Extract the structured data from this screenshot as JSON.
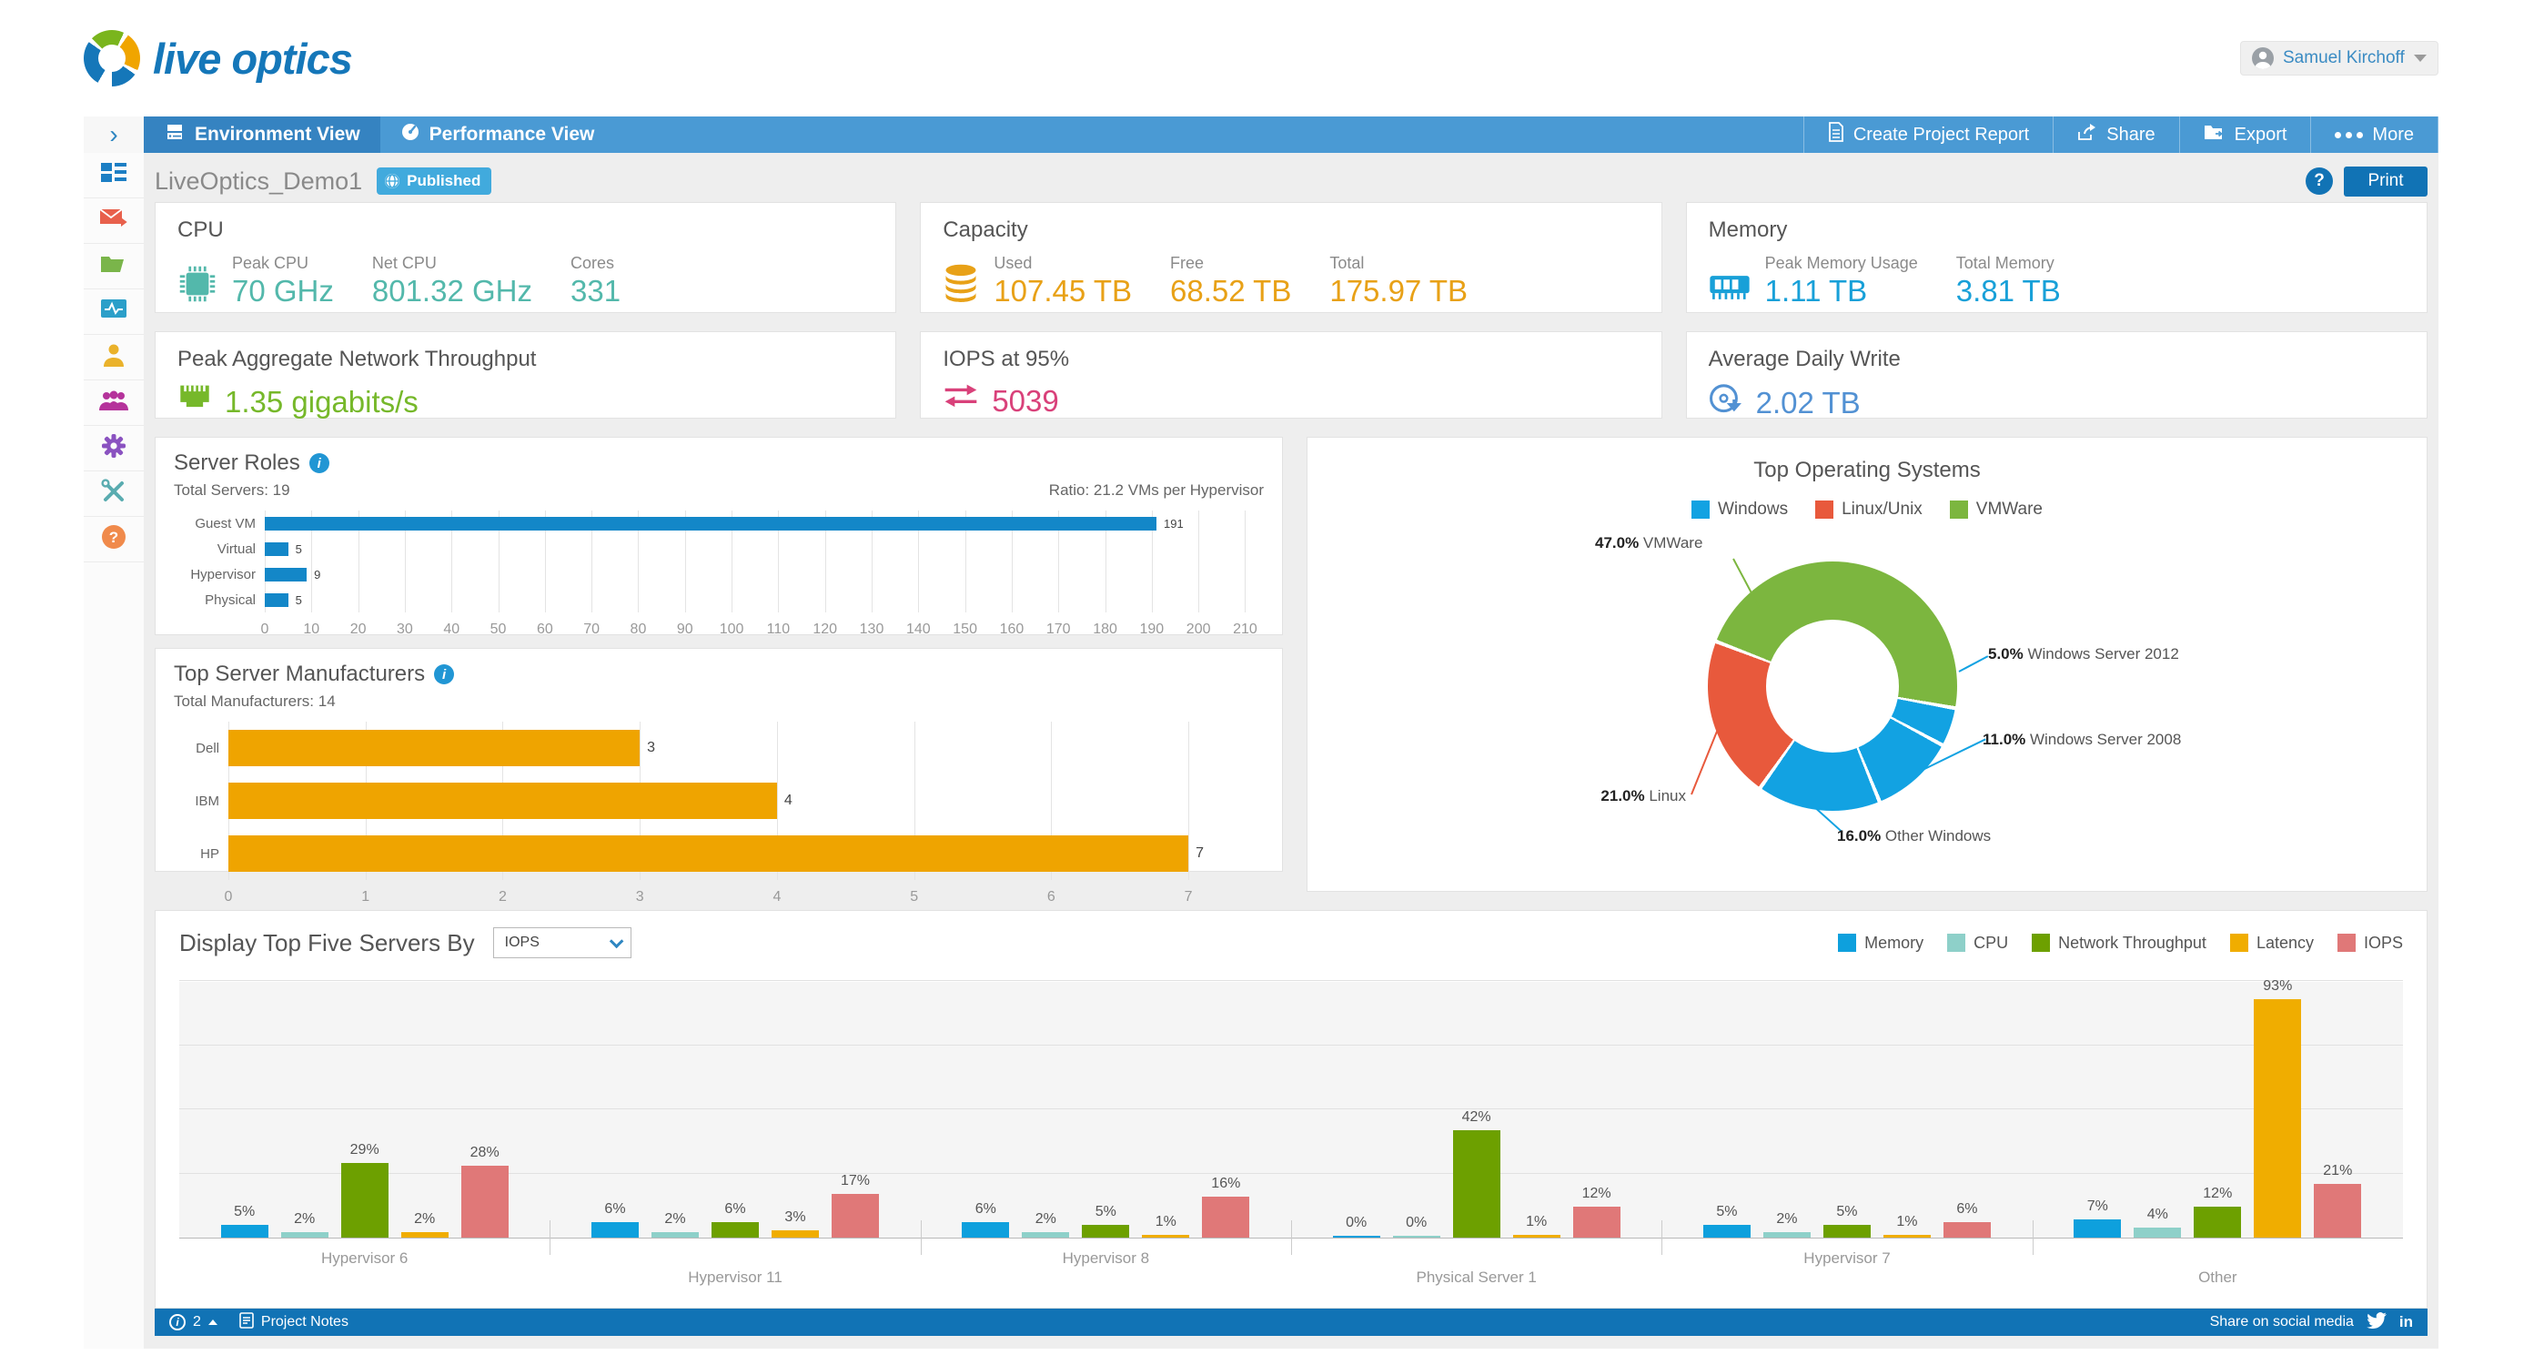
{
  "colors": {
    "brand_blue": "#1577b9",
    "navbar_blue": "#4a9ad4",
    "active_tab_blue": "#3583c1",
    "footer_blue": "#1173b5",
    "badge_blue": "#41aadd"
  },
  "icons": {
    "rail_chevron": "›",
    "info_glyph": "i",
    "help_glyph": "?",
    "linkedin_glyph": "in"
  },
  "header": {
    "brand": "live optics",
    "user": "Samuel Kirchoff"
  },
  "nav": {
    "tabs": [
      {
        "label": "Environment View"
      },
      {
        "label": "Performance View"
      }
    ],
    "actions": [
      {
        "label": "Create Project Report"
      },
      {
        "label": "Share"
      },
      {
        "label": "Export"
      },
      {
        "label": "More"
      }
    ]
  },
  "sidebar": {
    "items": [
      {
        "icon": "dashboard-icon"
      },
      {
        "icon": "mail-forward-icon"
      },
      {
        "icon": "folder-icon"
      },
      {
        "icon": "activity-monitor-icon"
      },
      {
        "icon": "user-icon"
      },
      {
        "icon": "user-group-icon"
      },
      {
        "icon": "settings-gear-icon"
      },
      {
        "icon": "tools-icon"
      },
      {
        "icon": "help-icon"
      }
    ]
  },
  "page": {
    "title": "LiveOptics_Demo1",
    "badge": "Published",
    "print_label": "Print"
  },
  "cards": {
    "cpu": {
      "title": "CPU",
      "color": "#53b8ab",
      "icon": "cpu-chip-icon",
      "metrics": [
        {
          "label": "Peak CPU",
          "value": "70 GHz"
        },
        {
          "label": "Net CPU",
          "value": "801.32 GHz"
        },
        {
          "label": "Cores",
          "value": "331"
        }
      ]
    },
    "capacity": {
      "title": "Capacity",
      "color": "#e8a117",
      "icon": "database-icon",
      "metrics": [
        {
          "label": "Used",
          "value": "107.45 TB"
        },
        {
          "label": "Free",
          "value": "68.52 TB"
        },
        {
          "label": "Total",
          "value": "175.97 TB"
        }
      ]
    },
    "memory": {
      "title": "Memory",
      "color": "#18a0d8",
      "icon": "memory-icon",
      "metrics": [
        {
          "label": "Peak Memory Usage",
          "value": "1.11 TB"
        },
        {
          "label": "Total Memory",
          "value": "3.81 TB"
        }
      ]
    },
    "network": {
      "title": "Peak Aggregate Network Throughput",
      "color": "#76b82a",
      "icon": "ethernet-icon",
      "value": "1.35 gigabits/s"
    },
    "iops": {
      "title": "IOPS at 95%",
      "color": "#d9417a",
      "icon": "transfer-arrows-icon",
      "value": "5039"
    },
    "daily_write": {
      "title": "Average Daily Write",
      "color": "#5291d3",
      "icon": "disk-write-icon",
      "value": "2.02 TB"
    }
  },
  "chart_data": [
    {
      "id": "server_roles",
      "type": "bar",
      "orientation": "horizontal",
      "title": "Server Roles",
      "subtitle_left": "Total Servers: 19",
      "subtitle_right": "Ratio: 21.2 VMs per Hypervisor",
      "categories": [
        "Guest VM",
        "Virtual",
        "Hypervisor",
        "Physical"
      ],
      "values": [
        191,
        5,
        9,
        5
      ],
      "bar_color": "#1387c8",
      "xlim": [
        0,
        210
      ],
      "grid": true,
      "xticks": [
        0,
        10,
        20,
        30,
        40,
        50,
        60,
        70,
        80,
        90,
        100,
        110,
        120,
        130,
        140,
        150,
        160,
        170,
        180,
        190,
        200,
        210
      ]
    },
    {
      "id": "top_server_manufacturers",
      "type": "bar",
      "orientation": "horizontal",
      "title": "Top Server Manufacturers",
      "subtitle_left": "Total Manufacturers: 14",
      "categories": [
        "Dell",
        "IBM",
        "HP"
      ],
      "values": [
        3,
        4,
        7
      ],
      "bar_color": "#efa400",
      "xlim": [
        0,
        7
      ],
      "grid": true,
      "xticks": [
        0,
        1,
        2,
        3,
        4,
        5,
        6,
        7
      ]
    },
    {
      "id": "top_operating_systems",
      "type": "pie",
      "title": "Top Operating Systems",
      "legend": [
        {
          "label": "Windows",
          "color": "#12a2e2"
        },
        {
          "label": "Linux/Unix",
          "color": "#e8593c"
        },
        {
          "label": "VMWare",
          "color": "#7cb63f"
        }
      ],
      "start_angle_deg": 291,
      "slices": [
        {
          "label": "VMWare",
          "pct": 47.0,
          "color": "#7cb63f"
        },
        {
          "label": "Windows Server 2012",
          "pct": 5.0,
          "color": "#12a2e2"
        },
        {
          "label": "Windows Server 2008",
          "pct": 11.0,
          "color": "#12a2e2"
        },
        {
          "label": "Other Windows",
          "pct": 16.0,
          "color": "#12a2e2"
        },
        {
          "label": "Linux",
          "pct": 21.0,
          "color": "#e8593c"
        }
      ]
    },
    {
      "id": "top_five_servers",
      "type": "bar",
      "title": "Display Top Five Servers By",
      "selector_value": "IOPS",
      "unit": "%",
      "ylim": [
        0,
        100
      ],
      "grid": true,
      "categories": [
        "Hypervisor 6",
        "Hypervisor 11",
        "Hypervisor 8",
        "Physical Server 1",
        "Hypervisor 7",
        "Other"
      ],
      "series": [
        {
          "name": "Memory",
          "color": "#0ea0dd",
          "values": [
            5,
            6,
            6,
            0,
            5,
            7
          ]
        },
        {
          "name": "CPU",
          "color": "#8ed0c9",
          "values": [
            2,
            2,
            2,
            0,
            2,
            4
          ]
        },
        {
          "name": "Network Throughput",
          "color": "#6da000",
          "values": [
            29,
            6,
            5,
            42,
            5,
            12
          ]
        },
        {
          "name": "Latency",
          "color": "#f0ad00",
          "values": [
            2,
            3,
            1,
            1,
            1,
            93
          ]
        },
        {
          "name": "IOPS",
          "color": "#e07878",
          "values": [
            28,
            17,
            16,
            12,
            6,
            21
          ]
        }
      ]
    }
  ],
  "footer": {
    "info_count": "2",
    "project_notes": "Project Notes",
    "share_prompt": "Share on social media"
  }
}
